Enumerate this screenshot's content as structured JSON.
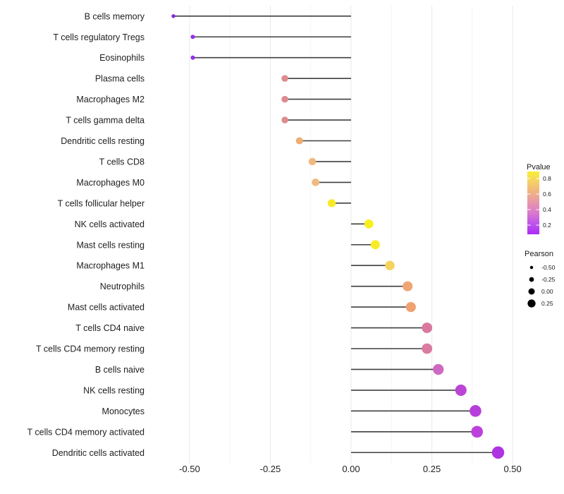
{
  "chart_data": {
    "type": "lollipop",
    "title": "",
    "xlabel": "",
    "ylabel": "",
    "xlim": [
      -0.62,
      0.52
    ],
    "x_ticks": [
      -0.5,
      -0.25,
      0,
      0.25,
      0.5
    ],
    "x_tick_labels": [
      "-0.50",
      "-0.25",
      "0.00",
      "0.25",
      "0.50"
    ],
    "x_minor_ticks": [
      -0.375,
      -0.125,
      0.125,
      0.375
    ],
    "baseline": 0,
    "grid": "vertical-only",
    "legend_position": "right",
    "rows": [
      {
        "label": "B cells memory",
        "pearson": -0.55,
        "pvalue_approx": 0.05,
        "color": "#8627E0"
      },
      {
        "label": "T cells regulatory  Tregs",
        "pearson": -0.49,
        "pvalue_approx": 0.07,
        "color": "#9530E8"
      },
      {
        "label": "Eosinophils",
        "pearson": -0.49,
        "pvalue_approx": 0.07,
        "color": "#9530E8"
      },
      {
        "label": "Plasma cells",
        "pearson": -0.205,
        "pvalue_approx": 0.5,
        "color": "#DD8B8F"
      },
      {
        "label": "Macrophages M2",
        "pearson": -0.205,
        "pvalue_approx": 0.5,
        "color": "#DD8B8F"
      },
      {
        "label": "T cells gamma delta",
        "pearson": -0.205,
        "pvalue_approx": 0.5,
        "color": "#DD8B8F"
      },
      {
        "label": "Dendritic cells resting",
        "pearson": -0.16,
        "pvalue_approx": 0.6,
        "color": "#EFAD72"
      },
      {
        "label": "T cells CD8",
        "pearson": -0.12,
        "pvalue_approx": 0.62,
        "color": "#F0B87E"
      },
      {
        "label": "Macrophages M0",
        "pearson": -0.11,
        "pvalue_approx": 0.62,
        "color": "#F1BA80"
      },
      {
        "label": "T cells follicular helper",
        "pearson": -0.06,
        "pvalue_approx": 0.85,
        "color": "#F8EB25"
      },
      {
        "label": "NK cells activated",
        "pearson": 0.055,
        "pvalue_approx": 0.87,
        "color": "#F9EF1B"
      },
      {
        "label": "Mast cells resting",
        "pearson": 0.075,
        "pvalue_approx": 0.85,
        "color": "#F8EC28"
      },
      {
        "label": "Macrophages M1",
        "pearson": 0.12,
        "pvalue_approx": 0.75,
        "color": "#F5D35F"
      },
      {
        "label": "Neutrophils",
        "pearson": 0.175,
        "pvalue_approx": 0.58,
        "color": "#EFA573"
      },
      {
        "label": "Mast cells activated",
        "pearson": 0.185,
        "pvalue_approx": 0.58,
        "color": "#EFA270"
      },
      {
        "label": "T cells CD4 naive",
        "pearson": 0.235,
        "pvalue_approx": 0.45,
        "color": "#D9799F"
      },
      {
        "label": "T cells CD4 memory resting",
        "pearson": 0.235,
        "pvalue_approx": 0.44,
        "color": "#DA7BA2"
      },
      {
        "label": "B cells naive",
        "pearson": 0.27,
        "pvalue_approx": 0.35,
        "color": "#CF68C1"
      },
      {
        "label": "NK cells resting",
        "pearson": 0.34,
        "pvalue_approx": 0.25,
        "color": "#BB45D6"
      },
      {
        "label": "Monocytes",
        "pearson": 0.385,
        "pvalue_approx": 0.2,
        "color": "#B83EDB"
      },
      {
        "label": "T cells CD4 memory activated",
        "pearson": 0.39,
        "pvalue_approx": 0.2,
        "color": "#BC41DC"
      },
      {
        "label": "Dendritic cells activated",
        "pearson": 0.455,
        "pvalue_approx": 0.13,
        "color": "#AF33E3"
      }
    ],
    "legend": {
      "pvalue": {
        "title": "Pvalue",
        "tick_labels": [
          "0.8",
          "0.6",
          "0.4",
          "0.2"
        ],
        "gradient_top_to_bottom": [
          "#F9EE34",
          "#F5D066",
          "#F0B185",
          "#E795AC",
          "#D878CE",
          "#BE53EC",
          "#A92CF4"
        ]
      },
      "pearson": {
        "title": "Pearson",
        "items": [
          {
            "label": "-0.50",
            "value": -0.5
          },
          {
            "label": "-0.25",
            "value": -0.25
          },
          {
            "label": "0.00",
            "value": 0
          },
          {
            "label": "0.25",
            "value": 0.25
          }
        ],
        "dot_color": "#000000"
      }
    },
    "styles": {
      "stem_color": "#3F3F3F",
      "grid_major_color": "#EBEBEB",
      "grid_minor_color": "#F4F4F4",
      "axis_text_color": "#212121",
      "legend_text_color": "#1A1A1A",
      "background": "#FFFFFF"
    }
  }
}
